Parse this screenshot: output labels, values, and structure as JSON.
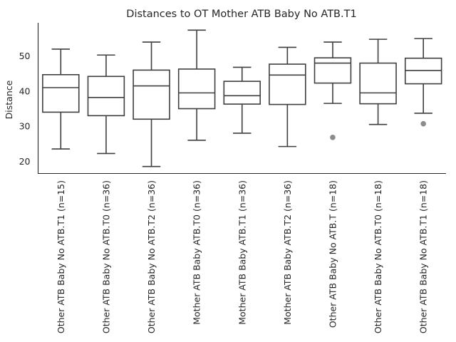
{
  "chart_data": {
    "type": "box",
    "title": "Distances to OT Mother ATB Baby No ATB.T1",
    "xlabel": "",
    "ylabel": "Distance",
    "ylim": [
      16.5,
      59.5
    ],
    "yticks": [
      20,
      30,
      40,
      50
    ],
    "grid": false,
    "categories": [
      "Other ATB Baby No ATB.T1 (n=15)",
      "Other ATB Baby No ATB.T0 (n=36)",
      "Other ATB Baby No ATB.T2 (n=36)",
      "Mother ATB Baby ATB.T0 (n=36)",
      "Mother ATB Baby ATB.T1 (n=36)",
      "Mother ATB Baby ATB.T2 (n=36)",
      "Other ATB Baby No ATB.T (n=18)",
      "Other ATB Baby No ATB.T0 (n=18)",
      "Other ATB Baby No ATB.T1 (n=18)"
    ],
    "boxes": [
      {
        "whislo": 23.5,
        "q1": 34.0,
        "med": 41.0,
        "q3": 44.7,
        "whishi": 52.0,
        "fliers": []
      },
      {
        "whislo": 22.2,
        "q1": 33.0,
        "med": 38.2,
        "q3": 44.2,
        "whishi": 50.3,
        "fliers": []
      },
      {
        "whislo": 18.5,
        "q1": 32.0,
        "med": 41.5,
        "q3": 46.0,
        "whishi": 54.0,
        "fliers": []
      },
      {
        "whislo": 26.0,
        "q1": 35.0,
        "med": 39.5,
        "q3": 46.3,
        "whishi": 57.4,
        "fliers": []
      },
      {
        "whislo": 28.0,
        "q1": 36.3,
        "med": 38.7,
        "q3": 42.8,
        "whishi": 46.8,
        "fliers": []
      },
      {
        "whislo": 24.2,
        "q1": 36.2,
        "med": 44.6,
        "q3": 47.7,
        "whishi": 52.5,
        "fliers": []
      },
      {
        "whislo": 36.5,
        "q1": 42.3,
        "med": 48.0,
        "q3": 49.5,
        "whishi": 54.0,
        "fliers": [
          26.8
        ]
      },
      {
        "whislo": 30.5,
        "q1": 36.4,
        "med": 39.5,
        "q3": 48.0,
        "whishi": 54.8,
        "fliers": []
      },
      {
        "whislo": 33.7,
        "q1": 42.1,
        "med": 45.9,
        "q3": 49.4,
        "whishi": 55.0,
        "fliers": [
          30.7
        ]
      }
    ],
    "colors": {
      "line": "#3f3f3f",
      "box_fill": "#ffffff",
      "flier": "#8c8c8c",
      "axis": "#262626"
    }
  }
}
